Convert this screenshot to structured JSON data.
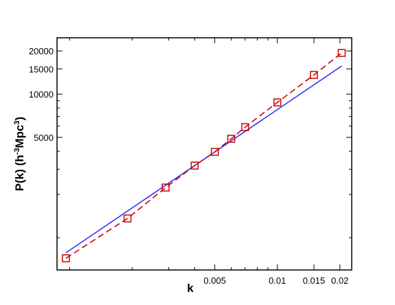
{
  "chart_data": {
    "type": "line",
    "xlabel": "k",
    "ylabel": [
      "P(k) (h",
      "-3",
      "Mpc",
      "3",
      ")"
    ],
    "xscale": "log",
    "yscale": "log",
    "xlim": [
      0.00087,
      0.0228
    ],
    "ylim": [
      596,
      24700
    ],
    "xticks": [
      0.005,
      0.01,
      0.015,
      0.02
    ],
    "yticks": [
      5000,
      10000,
      15000,
      20000
    ],
    "xminor": [
      0.001,
      0.002,
      0.003,
      0.004,
      0.006,
      0.007,
      0.008,
      0.009
    ],
    "yminor": [
      1000,
      2000,
      3000,
      4000,
      6000,
      7000,
      8000,
      9000
    ],
    "series": [
      {
        "color": "#3333ff",
        "linestyle": "solid",
        "marker": null,
        "x": [
          0.00096,
          0.0204
        ],
        "values": [
          785,
          15710
        ]
      },
      {
        "color": "#cc0000",
        "linestyle": "dashed",
        "marker": "square",
        "x": [
          0.00096,
          0.0019,
          0.0029,
          0.004,
          0.005,
          0.006,
          0.007,
          0.01,
          0.015,
          0.0204
        ],
        "values": [
          719,
          1362,
          2235,
          3180,
          3963,
          4888,
          5893,
          8760,
          13610,
          19370
        ]
      }
    ]
  }
}
